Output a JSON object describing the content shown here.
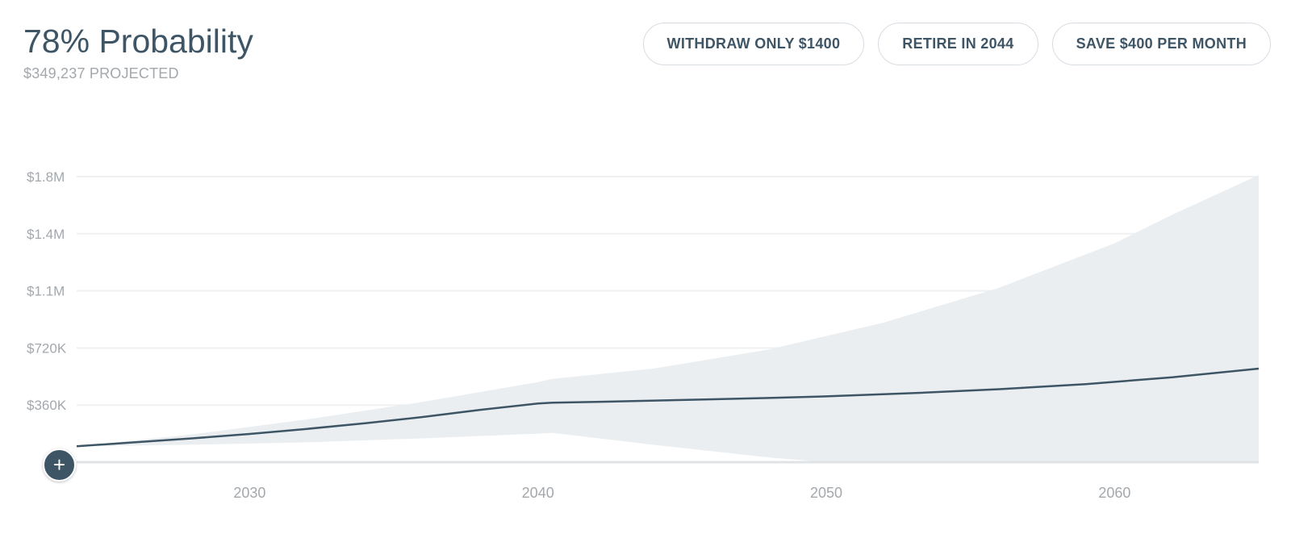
{
  "summary": {
    "probability_label": "78% Probability",
    "projected_label": "$349,237 PROJECTED"
  },
  "actions": [
    {
      "label": "WITHDRAW ONLY $1400"
    },
    {
      "label": "RETIRE IN 2044"
    },
    {
      "label": "SAVE $400 PER MONTH"
    }
  ],
  "add_button": {
    "label": "+",
    "icon": "plus-icon"
  },
  "colors": {
    "primary": "#3e5566",
    "band": "#eaeef1",
    "grid": "#eef0f2",
    "muted_text": "#a3a8ad"
  },
  "chart_data": {
    "type": "area",
    "title": "",
    "xlabel": "",
    "ylabel": "",
    "xlim": [
      2024,
      2065
    ],
    "ylim": [
      0,
      1800000
    ],
    "yticks": [
      {
        "value": 360000,
        "label": "$360K"
      },
      {
        "value": 720000,
        "label": "$720K"
      },
      {
        "value": 1080000,
        "label": "$1.1M"
      },
      {
        "value": 1440000,
        "label": "$1.4M"
      },
      {
        "value": 1800000,
        "label": "$1.8M"
      }
    ],
    "xticks": [
      {
        "value": 2030,
        "label": "2030"
      },
      {
        "value": 2040,
        "label": "2040"
      },
      {
        "value": 2050,
        "label": "2050"
      },
      {
        "value": 2060,
        "label": "2060"
      }
    ],
    "grid": true,
    "series": [
      {
        "role": "median",
        "x": [
          2024,
          2026,
          2028,
          2030,
          2032,
          2034,
          2036,
          2038,
          2040,
          2040.5,
          2042,
          2045,
          2048,
          2050,
          2053,
          2056,
          2059,
          2062,
          2065
        ],
        "y": [
          100000,
          125000,
          150000,
          178000,
          210000,
          245000,
          285000,
          330000,
          370000,
          375000,
          380000,
          392000,
          405000,
          415000,
          435000,
          460000,
          492000,
          535000,
          590000
        ]
      },
      {
        "role": "upper",
        "x": [
          2024,
          2028,
          2032,
          2036,
          2040,
          2040.5,
          2044,
          2048,
          2052,
          2056,
          2060,
          2062,
          2065
        ],
        "y": [
          100000,
          175000,
          270000,
          380000,
          505000,
          525000,
          590000,
          710000,
          880000,
          1100000,
          1380000,
          1560000,
          1810000
        ]
      },
      {
        "role": "lower",
        "x": [
          2024,
          2028,
          2032,
          2036,
          2040,
          2040.5,
          2044,
          2048,
          2050,
          2055,
          2065
        ],
        "y": [
          100000,
          110000,
          125000,
          150000,
          180000,
          185000,
          110000,
          30000,
          0,
          0,
          0
        ]
      }
    ]
  }
}
